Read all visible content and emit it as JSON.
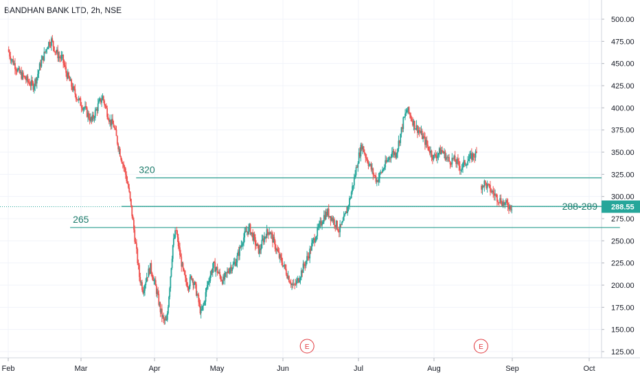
{
  "header": {
    "title": "BANDHAN BANK LTD, 2h, NSE"
  },
  "colors": {
    "up": "#26a69a",
    "down": "#ef5350",
    "level": "#2a9d8f",
    "levelText": "#1b7a6a",
    "priceTag": "#26a69a"
  },
  "chart_data": {
    "type": "candlestick",
    "title": "BANDHAN BANK LTD, 2h, NSE",
    "y_ticks": [
      "500.00",
      "475.00",
      "450.00",
      "425.00",
      "400.00",
      "375.00",
      "350.00",
      "325.00",
      "300.00",
      "275.00",
      "250.00",
      "225.00",
      "200.00",
      "175.00",
      "150.00",
      "125.00"
    ],
    "ylim": [
      120,
      510
    ],
    "x_ticks": [
      "Feb",
      "Mar",
      "Apr",
      "May",
      "Jun",
      "Jul",
      "Aug",
      "Sep",
      "Oct"
    ],
    "levels": [
      {
        "label": "320",
        "value": 321,
        "from_month": 1.75,
        "to_month": 9.25
      },
      {
        "label": "288-289",
        "value": 288.8,
        "from_month": 1.55,
        "to_month": 9.5
      },
      {
        "label": "265",
        "value": 265,
        "from_month": 0.85,
        "to_month": 8.4
      }
    ],
    "last_price": "288.55",
    "events": [
      {
        "label": "E",
        "month": 4.32
      },
      {
        "label": "E",
        "month": 6.6
      }
    ],
    "price_path": [
      [
        0.0,
        466
      ],
      [
        0.05,
        455
      ],
      [
        0.1,
        448
      ],
      [
        0.15,
        440
      ],
      [
        0.2,
        436
      ],
      [
        0.25,
        432
      ],
      [
        0.3,
        428
      ],
      [
        0.35,
        425
      ],
      [
        0.4,
        435
      ],
      [
        0.45,
        450
      ],
      [
        0.5,
        460
      ],
      [
        0.55,
        472
      ],
      [
        0.6,
        476
      ],
      [
        0.65,
        465
      ],
      [
        0.7,
        458
      ],
      [
        0.75,
        455
      ],
      [
        0.8,
        440
      ],
      [
        0.85,
        430
      ],
      [
        0.9,
        420
      ],
      [
        0.95,
        412
      ],
      [
        1.0,
        405
      ],
      [
        1.05,
        400
      ],
      [
        1.1,
        392
      ],
      [
        1.15,
        385
      ],
      [
        1.2,
        395
      ],
      [
        1.25,
        405
      ],
      [
        1.3,
        412
      ],
      [
        1.35,
        398
      ],
      [
        1.4,
        385
      ],
      [
        1.45,
        380
      ],
      [
        1.5,
        362
      ],
      [
        1.55,
        345
      ],
      [
        1.6,
        330
      ],
      [
        1.65,
        310
      ],
      [
        1.7,
        280
      ],
      [
        1.75,
        245
      ],
      [
        1.8,
        210
      ],
      [
        1.85,
        195
      ],
      [
        1.9,
        210
      ],
      [
        1.95,
        220
      ],
      [
        2.0,
        205
      ],
      [
        2.05,
        190
      ],
      [
        2.1,
        172
      ],
      [
        2.15,
        160
      ],
      [
        2.2,
        158
      ],
      [
        2.25,
        200
      ],
      [
        2.3,
        245
      ],
      [
        2.35,
        262
      ],
      [
        2.4,
        240
      ],
      [
        2.45,
        220
      ],
      [
        2.5,
        205
      ],
      [
        2.55,
        200
      ],
      [
        2.6,
        210
      ],
      [
        2.65,
        200
      ],
      [
        2.7,
        185
      ],
      [
        2.75,
        168
      ],
      [
        2.8,
        180
      ],
      [
        2.85,
        200
      ],
      [
        2.9,
        212
      ],
      [
        2.95,
        222
      ],
      [
        3.0,
        218
      ],
      [
        3.05,
        210
      ],
      [
        3.1,
        205
      ],
      [
        3.15,
        212
      ],
      [
        3.2,
        220
      ],
      [
        3.25,
        222
      ],
      [
        3.3,
        228
      ],
      [
        3.35,
        240
      ],
      [
        3.4,
        252
      ],
      [
        3.45,
        260
      ],
      [
        3.5,
        264
      ],
      [
        3.55,
        255
      ],
      [
        3.6,
        245
      ],
      [
        3.65,
        238
      ],
      [
        3.7,
        250
      ],
      [
        3.75,
        258
      ],
      [
        3.8,
        262
      ],
      [
        3.85,
        252
      ],
      [
        3.9,
        242
      ],
      [
        3.95,
        232
      ],
      [
        4.0,
        225
      ],
      [
        4.05,
        215
      ],
      [
        4.1,
        205
      ],
      [
        4.15,
        198
      ],
      [
        4.2,
        205
      ],
      [
        4.25,
        215
      ],
      [
        4.3,
        225
      ],
      [
        4.35,
        235
      ],
      [
        4.4,
        248
      ],
      [
        4.45,
        258
      ],
      [
        4.5,
        268
      ],
      [
        4.55,
        278
      ],
      [
        4.6,
        282
      ],
      [
        4.65,
        276
      ],
      [
        4.7,
        270
      ],
      [
        4.75,
        262
      ],
      [
        4.8,
        270
      ],
      [
        4.85,
        284
      ],
      [
        4.9,
        300
      ],
      [
        4.95,
        320
      ],
      [
        5.0,
        342
      ],
      [
        5.05,
        358
      ],
      [
        5.1,
        346
      ],
      [
        5.15,
        336
      ],
      [
        5.2,
        326
      ],
      [
        5.25,
        318
      ],
      [
        5.3,
        326
      ],
      [
        5.35,
        334
      ],
      [
        5.4,
        342
      ],
      [
        5.45,
        350
      ],
      [
        5.5,
        348
      ],
      [
        5.55,
        365
      ],
      [
        5.6,
        385
      ],
      [
        5.65,
        398
      ],
      [
        5.7,
        390
      ],
      [
        5.75,
        380
      ],
      [
        5.8,
        375
      ],
      [
        5.85,
        368
      ],
      [
        5.9,
        360
      ],
      [
        5.95,
        352
      ],
      [
        6.0,
        344
      ],
      [
        6.05,
        348
      ],
      [
        6.1,
        352
      ],
      [
        6.15,
        346
      ],
      [
        6.2,
        340
      ],
      [
        6.25,
        342
      ],
      [
        6.3,
        338
      ],
      [
        6.35,
        332
      ],
      [
        6.4,
        338
      ],
      [
        6.45,
        342
      ],
      [
        6.5,
        346
      ],
      [
        6.55,
        348
      ],
      [
        6.6,
        312
      ],
      [
        6.65,
        315
      ],
      [
        6.7,
        310
      ],
      [
        6.75,
        305
      ],
      [
        6.8,
        300
      ],
      [
        6.85,
        296
      ],
      [
        6.9,
        292
      ],
      [
        6.95,
        290
      ],
      [
        7.0,
        288.5
      ]
    ]
  }
}
